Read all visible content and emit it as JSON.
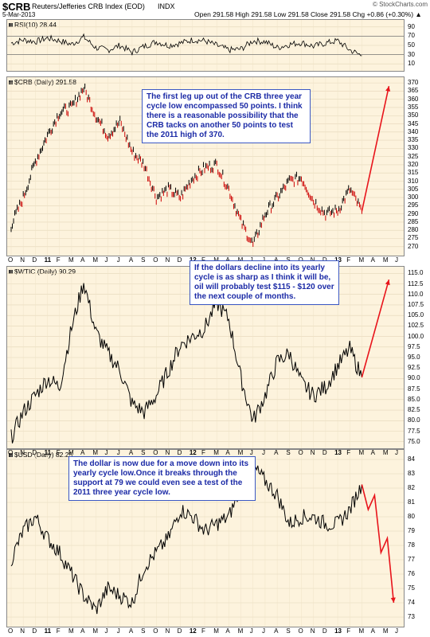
{
  "header": {
    "symbol": "$CRB",
    "name": "Reuters/Jefferies CRB Index (EOD)",
    "exchange": "INDX",
    "date": "5-Mar-2013",
    "watermark": "© StockCharts.com",
    "quote": "Open 291.58  High 291.58  Low 291.58  Close 291.58  Chg +0.86 (+0.30%) ▲"
  },
  "panels": {
    "rsi": {
      "label": "RSI(10) 28.44",
      "ticks": [
        "90",
        "70",
        "50",
        "30",
        "10"
      ]
    },
    "crb": {
      "label": "$CRB (Daily) 291.58",
      "ticks": [
        "370",
        "365",
        "360",
        "355",
        "350",
        "345",
        "340",
        "335",
        "330",
        "325",
        "320",
        "315",
        "310",
        "305",
        "300",
        "295",
        "290",
        "285",
        "280",
        "275",
        "270"
      ]
    },
    "wtic": {
      "label": "$WTIC (Daily) 90.29",
      "ticks": [
        "115.0",
        "112.5",
        "110.0",
        "107.5",
        "105.0",
        "102.5",
        "100.0",
        "97.5",
        "95.0",
        "92.5",
        "90.0",
        "87.5",
        "85.0",
        "82.5",
        "80.0",
        "77.5",
        "75.0"
      ]
    },
    "usd": {
      "label": "$USD (Daily) 82.25",
      "ticks": [
        "84",
        "83",
        "82",
        "81",
        "80",
        "79",
        "78",
        "77",
        "76",
        "75",
        "74",
        "73"
      ]
    }
  },
  "x_axis": [
    "O",
    "N",
    "D",
    "11",
    "F",
    "M",
    "A",
    "M",
    "J",
    "J",
    "A",
    "S",
    "O",
    "N",
    "D",
    "12",
    "F",
    "M",
    "A",
    "M",
    "J",
    "J",
    "A",
    "S",
    "O",
    "N",
    "D",
    "13",
    "F",
    "M",
    "A",
    "M",
    "J"
  ],
  "annotations": {
    "crb": "The first leg up out of the CRB three year cycle low encompassed 50 points. I think there is a reasonable possibility that the CRB tacks on another 50 points to test the 2011 high of 370.",
    "wtic": "If the dollars decline into its yearly cycle is as sharp as I think it will be, oil will probably test $115 - $120 over the next couple of months.",
    "usd": "The dollar is now due for a move down into its yearly cycle low.Once it breaks through the support at 79 we could even see a test of the 2011 three year cycle low."
  },
  "colors": {
    "panel_bg": "#fdf3dd",
    "price_line": "#000000",
    "up_bar": "#000000",
    "down_bar": "#cc0000",
    "projection": "#e8141b",
    "note_text": "#1b2aa6",
    "note_border": "#3b58c4",
    "rsi_fill": "#8c6a6a"
  },
  "chart_data": [
    {
      "type": "line",
      "title": "RSI(10) 28.44",
      "ylim": [
        0,
        100
      ],
      "x": [
        "O",
        "N",
        "D",
        "11",
        "F",
        "M",
        "A",
        "M",
        "J",
        "J",
        "A",
        "S",
        "O",
        "N",
        "D",
        "12",
        "F",
        "M",
        "A",
        "M",
        "J",
        "J",
        "A",
        "S",
        "O",
        "N",
        "D",
        "13",
        "F",
        "M"
      ],
      "values": [
        55,
        62,
        58,
        66,
        60,
        52,
        68,
        45,
        40,
        50,
        35,
        48,
        58,
        50,
        55,
        62,
        60,
        50,
        40,
        42,
        60,
        58,
        45,
        52,
        56,
        48,
        55,
        60,
        40,
        28
      ]
    },
    {
      "type": "bar",
      "title": "$CRB (Daily) 291.58",
      "ylim": [
        266,
        372
      ],
      "x": [
        "O",
        "N",
        "D",
        "11",
        "F",
        "M",
        "A",
        "M",
        "J",
        "J",
        "A",
        "S",
        "O",
        "N",
        "D",
        "12",
        "F",
        "M",
        "A",
        "M",
        "J",
        "J",
        "A",
        "S",
        "O",
        "N",
        "D",
        "13",
        "F",
        "M"
      ],
      "values": [
        283,
        300,
        322,
        338,
        352,
        355,
        367,
        350,
        338,
        346,
        328,
        320,
        300,
        305,
        300,
        312,
        318,
        320,
        305,
        285,
        271,
        290,
        300,
        310,
        312,
        298,
        290,
        292,
        305,
        291.58
      ],
      "projection": {
        "from": [
          "M",
          291.58
        ],
        "to": [
          "M",
          368
        ]
      }
    },
    {
      "type": "line",
      "title": "$WTIC (Daily) 90.29",
      "ylim": [
        74,
        116
      ],
      "x": [
        "O",
        "N",
        "D",
        "11",
        "F",
        "M",
        "A",
        "M",
        "J",
        "J",
        "A",
        "S",
        "O",
        "N",
        "D",
        "12",
        "F",
        "M",
        "A",
        "M",
        "J",
        "J",
        "A",
        "S",
        "O",
        "N",
        "D",
        "13",
        "F",
        "M"
      ],
      "values": [
        76,
        82,
        86,
        90,
        88,
        102,
        113,
        101,
        96,
        92,
        84,
        82,
        86,
        92,
        98,
        100,
        102,
        108,
        104,
        90,
        80,
        86,
        94,
        96,
        89,
        86,
        88,
        93,
        97,
        90.29
      ],
      "projection": {
        "from": [
          "M",
          90.29
        ],
        "to": [
          "M",
          113.5
        ]
      }
    },
    {
      "type": "line",
      "title": "$USD (Daily) 82.25",
      "ylim": [
        72.5,
        84.5
      ],
      "x": [
        "O",
        "N",
        "D",
        "11",
        "F",
        "M",
        "A",
        "M",
        "J",
        "J",
        "A",
        "S",
        "O",
        "N",
        "D",
        "12",
        "F",
        "M",
        "A",
        "M",
        "J",
        "J",
        "A",
        "S",
        "O",
        "N",
        "D",
        "13",
        "F",
        "M"
      ],
      "values": [
        77,
        79,
        80,
        78.5,
        77.5,
        76,
        74.5,
        73.5,
        75,
        74.5,
        74,
        76.5,
        77.5,
        78.5,
        80.5,
        80,
        79,
        79.5,
        80,
        82,
        83.5,
        82.5,
        81.5,
        79.5,
        80,
        80,
        79.5,
        79.5,
        80.5,
        82.25
      ],
      "projection": {
        "path": [
          [
            "M",
            82.25
          ],
          [
            "M",
            80.5
          ],
          [
            "A",
            81.5
          ],
          [
            "A",
            77.5
          ],
          [
            "M",
            78.5
          ],
          [
            "M",
            74
          ]
        ]
      }
    }
  ]
}
